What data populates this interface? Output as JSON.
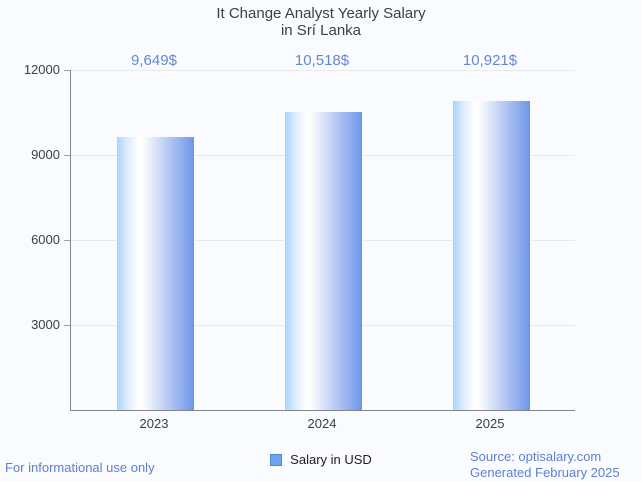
{
  "title": {
    "line1": "It Change Analyst Yearly Salary",
    "line2": "in Srí Lanka"
  },
  "chart_data": {
    "type": "bar",
    "title": "It Change Analyst Yearly Salary in Srí Lanka",
    "categories": [
      "2023",
      "2024",
      "2025"
    ],
    "values": [
      9649,
      10518,
      10921
    ],
    "value_labels": [
      "9,649$",
      "10,518$",
      "10,921$"
    ],
    "series_name": "Salary in USD",
    "xlabel": "",
    "ylabel": "",
    "ylim": [
      0,
      12000
    ],
    "yticks": [
      3000,
      6000,
      9000,
      12000
    ],
    "grid": true,
    "legend_position": "bottom-center"
  },
  "legend": {
    "label": "Salary in USD",
    "marker_color": "#6ea4ef",
    "marker_border": "#4c84d6"
  },
  "footer": {
    "left": "For informational use only",
    "source": "Source: optisalary.com",
    "generated": "Generated February 2025"
  },
  "colors": {
    "background": "#fafbfe",
    "title_text": "#3d4043",
    "axis_line": "#80868b",
    "grid_line": "#e8eaed",
    "tick_text": "#3c4043",
    "value_label_text": "#6187d8",
    "footer_text": "#5d80d0",
    "bar_left": "#a8d4fd",
    "bar_highlight": "#ffffff",
    "bar_right": "#6d95e8"
  }
}
